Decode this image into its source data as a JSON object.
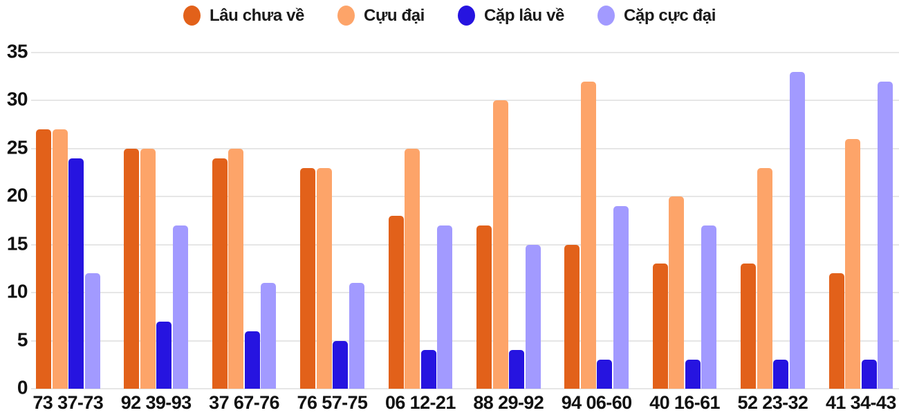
{
  "chart_data": {
    "type": "bar",
    "title": "",
    "xlabel": "",
    "ylabel": "",
    "categories": [
      "73 37-73",
      "92 39-93",
      "37 67-76",
      "76 57-75",
      "06 12-21",
      "88 29-92",
      "94 06-60",
      "40 16-61",
      "52 23-32",
      "41 34-43"
    ],
    "series": [
      {
        "name": "Lâu chưa về",
        "color": "#e2611a",
        "values": [
          27,
          25,
          24,
          23,
          18,
          17,
          15,
          13,
          13,
          12
        ]
      },
      {
        "name": "Cựu đại",
        "color": "#fda469",
        "values": [
          27,
          25,
          25,
          23,
          25,
          30,
          32,
          20,
          23,
          26
        ]
      },
      {
        "name": "Cặp lâu về",
        "color": "#2614e0",
        "values": [
          24,
          7,
          6,
          5,
          4,
          4,
          3,
          3,
          3,
          3
        ]
      },
      {
        "name": "Cặp cực đại",
        "color": "#a29aff",
        "values": [
          12,
          17,
          11,
          11,
          17,
          15,
          19,
          17,
          33,
          32
        ]
      }
    ],
    "ylim": [
      0,
      35
    ],
    "yticks": [
      0,
      5,
      10,
      15,
      20,
      25,
      30,
      35
    ],
    "grid": "horizontal",
    "legend_position": "top",
    "colors": {
      "grid": "#e6e6e6",
      "text": "#111111",
      "background": "#ffffff"
    }
  }
}
